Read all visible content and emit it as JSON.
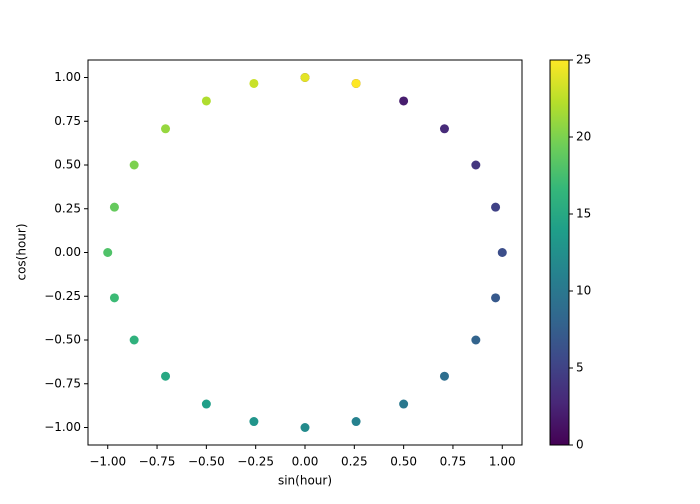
{
  "chart_data": {
    "type": "scatter",
    "xlabel": "sin(hour)",
    "ylabel": "cos(hour)",
    "x": [
      0,
      0.259,
      0.5,
      0.707,
      0.866,
      0.966,
      1,
      0.966,
      0.866,
      0.707,
      0.5,
      0.259,
      0,
      -0.259,
      -0.5,
      -0.707,
      -0.866,
      -0.966,
      -1,
      -0.966,
      -0.866,
      -0.707,
      -0.5,
      -0.259,
      0,
      0.259
    ],
    "y": [
      1,
      0.966,
      0.866,
      0.707,
      0.5,
      0.259,
      0,
      -0.259,
      -0.5,
      -0.707,
      -0.866,
      -0.966,
      -1,
      -0.966,
      -0.866,
      -0.707,
      -0.5,
      -0.259,
      0,
      0.259,
      0.5,
      0.707,
      0.866,
      0.966,
      1,
      0.966
    ],
    "c": [
      0,
      1,
      2,
      3,
      4,
      5,
      6,
      7,
      8,
      9,
      10,
      11,
      12,
      13,
      14,
      15,
      16,
      17,
      18,
      19,
      20,
      21,
      22,
      23,
      24,
      25
    ],
    "cmap": [
      "#440154",
      "#482878",
      "#3e4989",
      "#31688e",
      "#26828e",
      "#1f9e89",
      "#35b779",
      "#6ece58",
      "#b5de2b",
      "#fde725"
    ],
    "xlim": [
      -1.1,
      1.1
    ],
    "ylim": [
      -1.1,
      1.1
    ],
    "clim": [
      0,
      25
    ],
    "xticks": [
      {
        "value": -1,
        "label": "−1.00"
      },
      {
        "value": -0.75,
        "label": "−0.75"
      },
      {
        "value": -0.5,
        "label": "−0.50"
      },
      {
        "value": -0.25,
        "label": "−0.25"
      },
      {
        "value": 0,
        "label": "0.00"
      },
      {
        "value": 0.25,
        "label": "0.25"
      },
      {
        "value": 0.5,
        "label": "0.50"
      },
      {
        "value": 0.75,
        "label": "0.75"
      },
      {
        "value": 1,
        "label": "1.00"
      }
    ],
    "yticks": [
      {
        "value": -1,
        "label": "−1.00"
      },
      {
        "value": -0.75,
        "label": "−0.75"
      },
      {
        "value": -0.5,
        "label": "−0.50"
      },
      {
        "value": -0.25,
        "label": "−0.25"
      },
      {
        "value": 0,
        "label": "0.00"
      },
      {
        "value": 0.25,
        "label": "0.25"
      },
      {
        "value": 0.5,
        "label": "0.50"
      },
      {
        "value": 0.75,
        "label": "0.75"
      },
      {
        "value": 1,
        "label": "1.00"
      }
    ],
    "cticks": [
      0,
      5,
      10,
      15,
      20,
      25
    ],
    "grid": false
  }
}
